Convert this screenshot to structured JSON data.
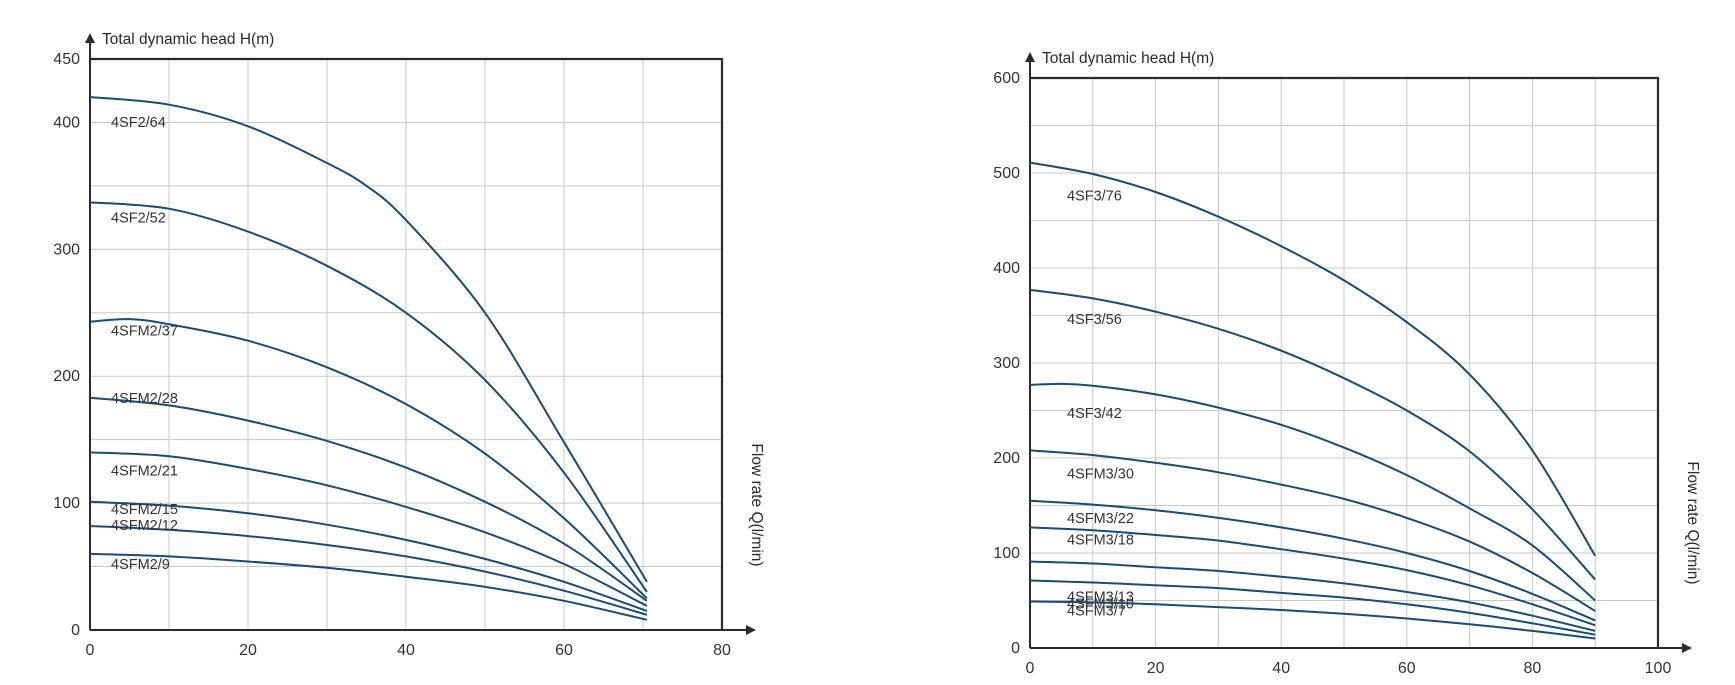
{
  "chart_data": [
    {
      "type": "line",
      "ylabel": "Total dynamic head H(m)",
      "xlabel": "Flow rate Q(l/min)",
      "xlim": [
        0,
        80
      ],
      "ylim": [
        0,
        450
      ],
      "x_ticks": [
        "0",
        "20",
        "40",
        "60",
        "80"
      ],
      "y_ticks": [
        "0",
        "100",
        "200",
        "300",
        "400",
        "450"
      ],
      "grid": true,
      "series": [
        {
          "name": "4SF2/64",
          "x": [
            0,
            10,
            20,
            30,
            35,
            40,
            50,
            60,
            70.5
          ],
          "values": [
            420,
            414,
            397,
            368,
            350,
            323,
            250,
            148,
            38
          ]
        },
        {
          "name": "4SF2/52",
          "x": [
            0,
            10,
            20,
            30,
            40,
            50,
            60,
            70.5
          ],
          "values": [
            337,
            332,
            314,
            287,
            250,
            197,
            124,
            30
          ]
        },
        {
          "name": "4SFM2/37",
          "x": [
            0,
            5,
            10,
            20,
            30,
            40,
            50,
            60,
            70.5
          ],
          "values": [
            243,
            245,
            241,
            228,
            207,
            178,
            139,
            88,
            25
          ]
        },
        {
          "name": "4SFM2/28",
          "x": [
            0,
            10,
            20,
            30,
            40,
            50,
            60,
            70.5
          ],
          "values": [
            183,
            177,
            165,
            149,
            128,
            101,
            68,
            23
          ]
        },
        {
          "name": "4SFM2/21",
          "x": [
            0,
            10,
            20,
            30,
            40,
            50,
            60,
            70.5
          ],
          "values": [
            140,
            137,
            127,
            114,
            97,
            77,
            52,
            19
          ]
        },
        {
          "name": "4SFM2/15",
          "x": [
            0,
            10,
            20,
            30,
            40,
            50,
            60,
            70.5
          ],
          "values": [
            101,
            98,
            92,
            83,
            71,
            56,
            38,
            15
          ]
        },
        {
          "name": "4SFM2/12",
          "x": [
            0,
            10,
            20,
            30,
            40,
            50,
            60,
            70.5
          ],
          "values": [
            82,
            79,
            74,
            67,
            58,
            46,
            31,
            12
          ]
        },
        {
          "name": "4SFM2/9",
          "x": [
            0,
            10,
            20,
            30,
            40,
            50,
            60,
            70.5
          ],
          "values": [
            60,
            58,
            54,
            49,
            42,
            34,
            23,
            8
          ]
        }
      ]
    },
    {
      "type": "line",
      "ylabel": "Total dynamic head H(m)",
      "xlabel": "Flow rate Q(l/min)",
      "xlim": [
        0,
        100
      ],
      "ylim": [
        0,
        600
      ],
      "x_ticks": [
        "0",
        "20",
        "40",
        "60",
        "80",
        "100"
      ],
      "y_ticks": [
        "0",
        "100",
        "200",
        "300",
        "400",
        "500",
        "600"
      ],
      "grid": true,
      "series": [
        {
          "name": "4SF3/76",
          "x": [
            0,
            10,
            20,
            30,
            40,
            50,
            60,
            70,
            80,
            90
          ],
          "values": [
            511,
            499,
            480,
            454,
            423,
            387,
            343,
            288,
            208,
            97
          ]
        },
        {
          "name": "4SF3/56",
          "x": [
            0,
            10,
            20,
            30,
            40,
            50,
            60,
            70,
            80,
            90
          ],
          "values": [
            377,
            368,
            354,
            336,
            313,
            284,
            250,
            207,
            146,
            72
          ]
        },
        {
          "name": "4SF3/42",
          "x": [
            0,
            5,
            10,
            20,
            30,
            40,
            50,
            60,
            70,
            80,
            90
          ],
          "values": [
            277,
            278,
            276,
            267,
            253,
            235,
            211,
            182,
            147,
            108,
            50
          ]
        },
        {
          "name": "4SFM3/30",
          "x": [
            0,
            10,
            20,
            30,
            40,
            50,
            60,
            70,
            80,
            90
          ],
          "values": [
            208,
            203,
            195,
            185,
            172,
            157,
            137,
            112,
            79,
            39
          ]
        },
        {
          "name": "4SFM3/22",
          "x": [
            0,
            10,
            20,
            30,
            40,
            50,
            60,
            70,
            80,
            90
          ],
          "values": [
            155,
            151,
            145,
            137,
            127,
            115,
            100,
            81,
            57,
            29
          ]
        },
        {
          "name": "4SFM3/18",
          "x": [
            0,
            10,
            20,
            30,
            40,
            50,
            60,
            70,
            80,
            90
          ],
          "values": [
            127,
            124,
            119,
            113,
            104,
            94,
            82,
            66,
            46,
            24
          ]
        },
        {
          "name": "4SFM3/13",
          "x": [
            0,
            10,
            20,
            30,
            40,
            50,
            60,
            70,
            80,
            90
          ],
          "values": [
            91,
            89,
            85,
            81,
            75,
            68,
            59,
            48,
            34,
            18
          ]
        },
        {
          "name": "4SFM3/10",
          "x": [
            0,
            10,
            20,
            30,
            40,
            50,
            60,
            70,
            80,
            90
          ],
          "values": [
            71,
            69,
            66,
            63,
            58,
            53,
            46,
            37,
            26,
            14
          ]
        },
        {
          "name": "4SFM3/7",
          "x": [
            0,
            10,
            20,
            30,
            40,
            50,
            60,
            70,
            80,
            90
          ],
          "values": [
            49,
            48,
            46,
            43,
            40,
            36,
            31,
            25,
            18,
            10
          ]
        }
      ]
    }
  ]
}
